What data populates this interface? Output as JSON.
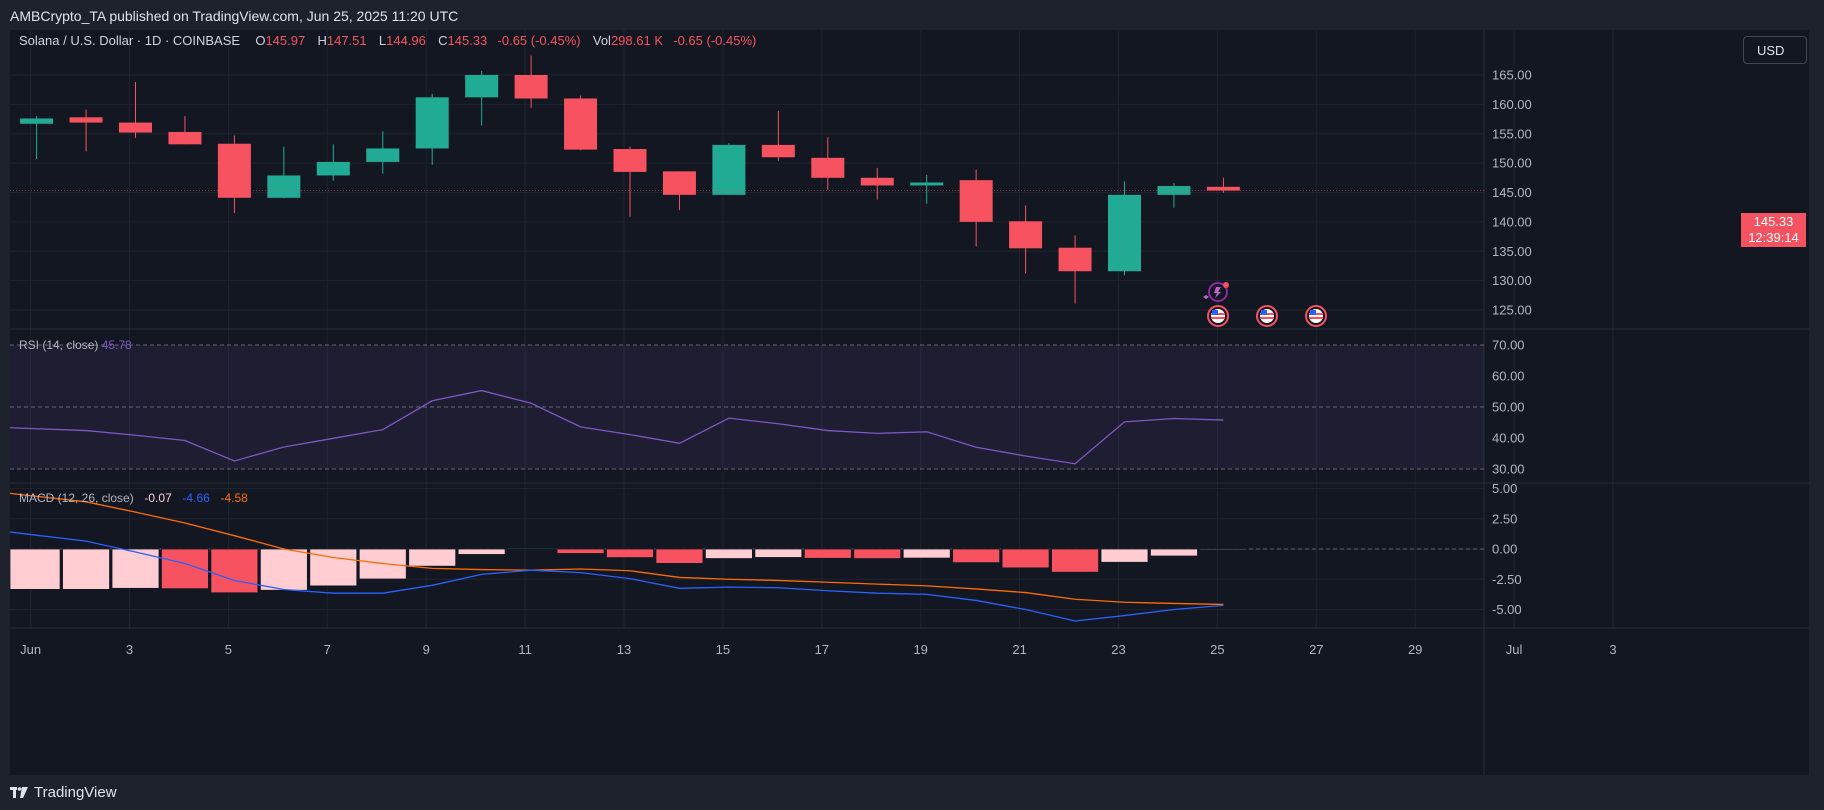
{
  "header": {
    "published": "AMBCrypto_TA published on TradingView.com, Jun 25, 2025 11:20 UTC"
  },
  "footer": {
    "brand": "TradingView"
  },
  "currency_button": "USD",
  "colors": {
    "up": "#22ab94",
    "down": "#f7525f",
    "macd_line": "#2962ff",
    "signal_line": "#ff6d00",
    "rsi_line": "#7e57c2",
    "hist_light": "#ffcdd2"
  },
  "symbol_legend": {
    "title": "Solana / U.S. Dollar · 1D · COINBASE",
    "o_label": "O",
    "o": "145.97",
    "h_label": "H",
    "h": "147.51",
    "l_label": "L",
    "l": "144.96",
    "c_label": "C",
    "c": "145.33",
    "change": "-0.65 (-0.45%)",
    "vol_label": "Vol",
    "vol": "298.61 K",
    "vol_change": "-0.65 (-0.45%)"
  },
  "rsi_legend": {
    "label": "RSI (14, close)",
    "value": "45.78"
  },
  "macd_legend": {
    "label": "MACD (12, 26, close)",
    "hist": "-0.07",
    "macd": "-4.66",
    "signal": "-4.58"
  },
  "last_price": {
    "price": "145.33",
    "countdown": "12:39:14"
  },
  "chart_data": {
    "type": "candlestick",
    "price_axis": {
      "ticks": [
        "165.00",
        "160.00",
        "155.00",
        "150.00",
        "145.00",
        "140.00",
        "135.00",
        "130.00",
        "125.00"
      ],
      "ylim": [
        122.2,
        171.3
      ]
    },
    "x_ticks": [
      "Jun",
      "3",
      "5",
      "7",
      "9",
      "11",
      "13",
      "15",
      "17",
      "19",
      "21",
      "23",
      "25",
      "27",
      "29",
      "Jul",
      "3"
    ],
    "dates": [
      "Jun 1",
      "Jun 2",
      "Jun 3",
      "Jun 4",
      "Jun 5",
      "Jun 6",
      "Jun 7",
      "Jun 8",
      "Jun 9",
      "Jun 10",
      "Jun 11",
      "Jun 12",
      "Jun 13",
      "Jun 14",
      "Jun 15",
      "Jun 16",
      "Jun 17",
      "Jun 18",
      "Jun 19",
      "Jun 20",
      "Jun 21",
      "Jun 22",
      "Jun 23",
      "Jun 24",
      "Jun 25"
    ],
    "candles": [
      {
        "o": 156.7,
        "h": 158.0,
        "l": 150.7,
        "c": 157.6
      },
      {
        "o": 157.8,
        "h": 159.1,
        "l": 152.0,
        "c": 156.9
      },
      {
        "o": 156.9,
        "h": 163.8,
        "l": 154.3,
        "c": 155.2
      },
      {
        "o": 155.3,
        "h": 158.0,
        "l": 153.2,
        "c": 153.2
      },
      {
        "o": 153.3,
        "h": 154.7,
        "l": 141.5,
        "c": 144.1
      },
      {
        "o": 144.1,
        "h": 152.8,
        "l": 144.0,
        "c": 147.9
      },
      {
        "o": 147.9,
        "h": 153.2,
        "l": 147.0,
        "c": 150.2
      },
      {
        "o": 150.2,
        "h": 155.4,
        "l": 148.2,
        "c": 152.5
      },
      {
        "o": 152.5,
        "h": 161.8,
        "l": 149.7,
        "c": 161.2
      },
      {
        "o": 161.2,
        "h": 165.7,
        "l": 156.4,
        "c": 165.0
      },
      {
        "o": 165.0,
        "h": 168.3,
        "l": 159.4,
        "c": 161.0
      },
      {
        "o": 161.0,
        "h": 161.5,
        "l": 152.2,
        "c": 152.3
      },
      {
        "o": 152.4,
        "h": 152.8,
        "l": 140.9,
        "c": 148.5
      },
      {
        "o": 148.6,
        "h": 148.6,
        "l": 142.0,
        "c": 144.6
      },
      {
        "o": 144.6,
        "h": 153.4,
        "l": 144.6,
        "c": 153.1
      },
      {
        "o": 153.1,
        "h": 158.9,
        "l": 150.4,
        "c": 151.0
      },
      {
        "o": 150.9,
        "h": 154.4,
        "l": 145.5,
        "c": 147.5
      },
      {
        "o": 147.5,
        "h": 149.2,
        "l": 143.8,
        "c": 146.2
      },
      {
        "o": 146.2,
        "h": 148.0,
        "l": 143.1,
        "c": 146.7
      },
      {
        "o": 147.1,
        "h": 148.9,
        "l": 135.8,
        "c": 140.0
      },
      {
        "o": 140.1,
        "h": 142.8,
        "l": 131.2,
        "c": 135.5
      },
      {
        "o": 135.6,
        "h": 137.7,
        "l": 126.1,
        "c": 131.6
      },
      {
        "o": 131.6,
        "h": 146.9,
        "l": 130.9,
        "c": 144.6
      },
      {
        "o": 144.6,
        "h": 146.6,
        "l": 142.4,
        "c": 146.1
      },
      {
        "o": 145.97,
        "h": 147.51,
        "l": 144.96,
        "c": 145.33
      }
    ],
    "rsi": {
      "name": "RSI (14, close)",
      "ticks": [
        "70.00",
        "60.00",
        "50.00",
        "40.00",
        "30.00"
      ],
      "levels": [
        70,
        50,
        30
      ],
      "values": [
        43.3,
        42.4,
        40.9,
        39.2,
        32.6,
        37.1,
        39.9,
        42.7,
        52.0,
        55.3,
        51.2,
        43.6,
        41.1,
        38.3,
        46.4,
        44.6,
        42.4,
        41.5,
        42.0,
        37.0,
        34.2,
        31.7,
        45.2,
        46.3,
        45.78
      ]
    },
    "macd": {
      "name": "MACD (12, 26, close)",
      "ticks": [
        "5.00",
        "2.50",
        "0.00",
        "-2.50",
        "-5.00"
      ],
      "histogram": [
        -3.34,
        -3.34,
        -3.25,
        -3.28,
        -3.62,
        -3.41,
        -3.05,
        -2.48,
        -1.42,
        -0.45,
        0.05,
        -0.37,
        -0.71,
        -1.19,
        -0.79,
        -0.7,
        -0.77,
        -0.79,
        -0.75,
        -1.13,
        -1.56,
        -1.92,
        -1.1,
        -0.58,
        -0.07
      ],
      "macd_line": [
        1.4,
        0.65,
        -0.25,
        -1.2,
        -2.6,
        -3.35,
        -3.65,
        -3.65,
        -3.0,
        -2.1,
        -1.75,
        -1.95,
        -2.45,
        -3.25,
        -3.15,
        -3.2,
        -3.45,
        -3.65,
        -3.75,
        -4.25,
        -5.0,
        -5.95,
        -5.5,
        -5.0,
        -4.66
      ],
      "signal_line": [
        4.6,
        3.9,
        3.05,
        2.15,
        1.1,
        0.0,
        -0.7,
        -1.2,
        -1.6,
        -1.7,
        -1.75,
        -1.65,
        -1.8,
        -2.35,
        -2.5,
        -2.6,
        -2.75,
        -2.9,
        -3.05,
        -3.3,
        -3.6,
        -4.15,
        -4.4,
        -4.5,
        -4.58
      ]
    }
  }
}
